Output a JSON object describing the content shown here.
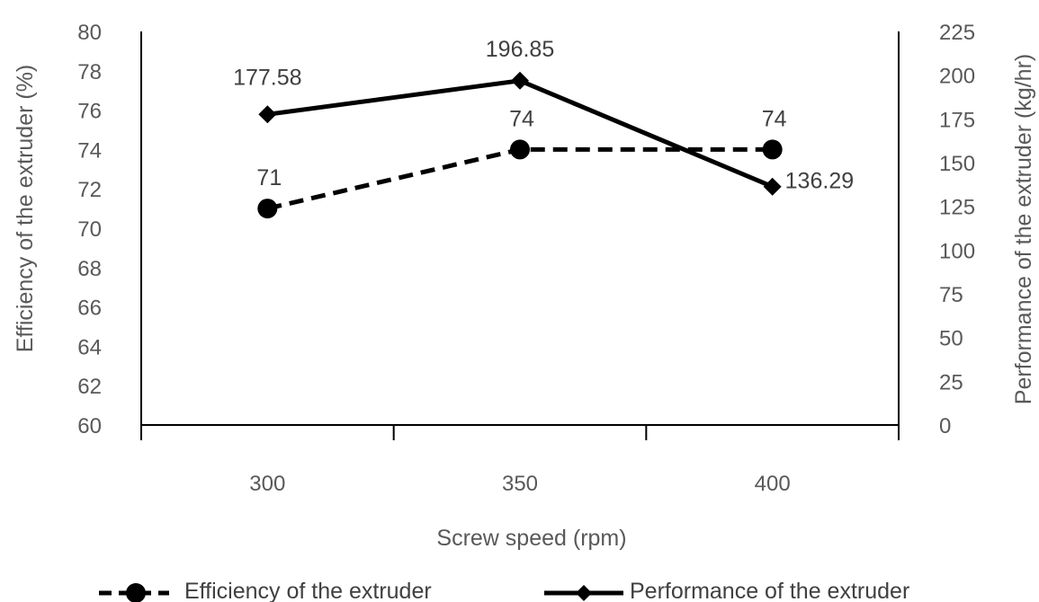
{
  "chart_data": {
    "type": "line",
    "categories": [
      "300",
      "350",
      "400"
    ],
    "x": [
      300,
      350,
      400
    ],
    "xlabel": "Screw speed (rpm)",
    "ylabel_left": "Efficiency of the extruder (%)",
    "ylabel_right": "Performance of the extruder (kg/hr)",
    "ylim_left": [
      60,
      80
    ],
    "ylim_right": [
      0,
      225
    ],
    "yticks_left": [
      "60",
      "62",
      "64",
      "66",
      "68",
      "70",
      "72",
      "74",
      "76",
      "78",
      "80"
    ],
    "yticks_right": [
      "0",
      "25",
      "50",
      "75",
      "100",
      "125",
      "150",
      "175",
      "200",
      "225"
    ],
    "grid": false,
    "legend_position": "bottom",
    "series": [
      {
        "name": "Efficiency of the extruder",
        "axis": "left",
        "style": "dashed",
        "marker": "circle",
        "color": "#000000",
        "values": [
          71,
          74,
          74
        ],
        "labels": [
          "71",
          "74",
          "74"
        ]
      },
      {
        "name": "Performance of the extruder",
        "axis": "right",
        "style": "solid",
        "marker": "diamond",
        "color": "#000000",
        "values": [
          177.58,
          196.85,
          136.29
        ],
        "labels": [
          "177.58",
          "196.85",
          "136.29"
        ]
      }
    ]
  }
}
